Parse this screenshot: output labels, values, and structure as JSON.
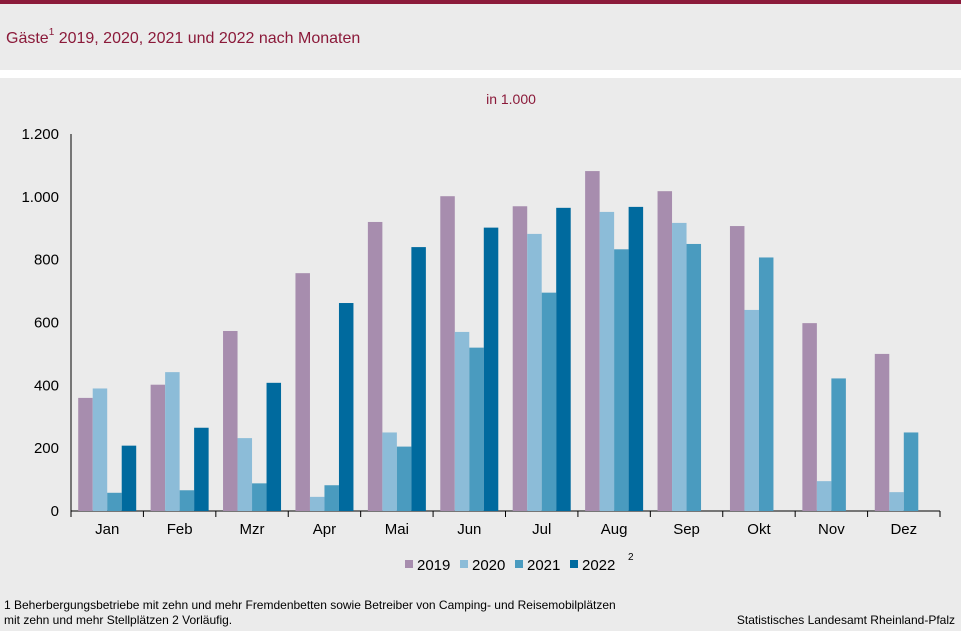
{
  "header": {
    "title_prefix": "Gäste",
    "title_sup": "1",
    "title_suffix": " 2019, 2020, 2021 und 2022 nach Monaten"
  },
  "footer": {
    "note_line1": "1 Beherbergungsbetriebe  mit zehn und mehr Fremdenbetten  sowie Betreiber von Camping- und Reisemobilplätzen",
    "note_line2": " mit zehn und mehr Stellplätzen     2 Vorläufig.",
    "source": "Statistisches Landesamt Rheinland-Pfalz"
  },
  "chart_data": {
    "type": "bar",
    "unit_label": "in 1.000",
    "categories": [
      "Jan",
      "Feb",
      "Mzr",
      "Apr",
      "Mai",
      "Jun",
      "Jul",
      "Aug",
      "Sep",
      "Okt",
      "Nov",
      "Dez"
    ],
    "ylim": [
      0,
      1200
    ],
    "yticks": [
      0,
      200,
      400,
      600,
      800,
      1000,
      1200
    ],
    "ytick_labels": [
      "0",
      "200",
      "400",
      "600",
      "800",
      "1.000",
      "1.200"
    ],
    "grid": false,
    "legend_position": "bottom",
    "series": [
      {
        "name": "2019",
        "sup": "",
        "color": "#a78dae",
        "values": [
          360,
          402,
          573,
          757,
          920,
          1002,
          970,
          1082,
          1018,
          907,
          598,
          500
        ]
      },
      {
        "name": "2020",
        "sup": "",
        "color": "#8cbcd8",
        "values": [
          390,
          442,
          232,
          45,
          250,
          570,
          882,
          952,
          917,
          640,
          95,
          60
        ]
      },
      {
        "name": "2021",
        "sup": "",
        "color": "#4a9bbf",
        "values": [
          58,
          66,
          88,
          82,
          205,
          520,
          695,
          833,
          850,
          807,
          422,
          250
        ]
      },
      {
        "name": "2022",
        "sup": "2",
        "color": "#006a9e",
        "values": [
          208,
          265,
          408,
          662,
          840,
          902,
          965,
          968,
          null,
          null,
          null,
          null
        ]
      }
    ]
  }
}
